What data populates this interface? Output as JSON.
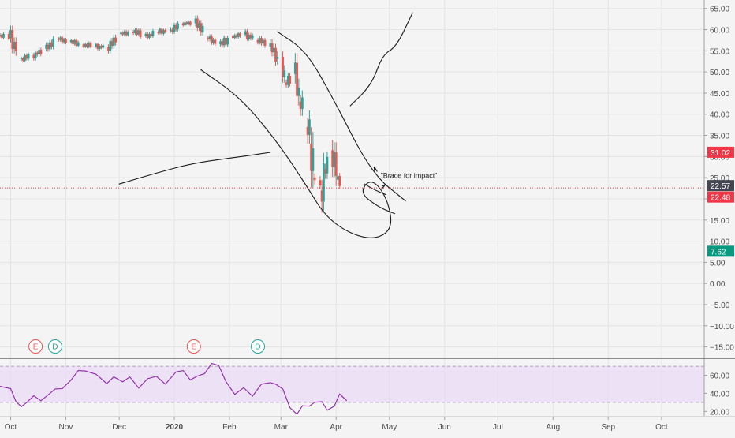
{
  "theme": {
    "background": "#f4f4f4",
    "grid": "#e3e3e3",
    "axis_text": "#4a4a4a",
    "up_color": "#26a69a",
    "down_color": "#ef5350",
    "drawing_color": "#1a1a1a",
    "rsi_line": "#8e24aa",
    "rsi_band_fill": "#e8d9f5",
    "current_price_line": "#e53935"
  },
  "chart_data": [
    {
      "type": "candlestick",
      "title": "",
      "x_axis": {
        "tick_labels": [
          "Oct",
          "Nov",
          "Dec",
          "2020",
          "Feb",
          "Mar",
          "Apr",
          "May",
          "Jun",
          "Jul",
          "Aug",
          "Sep",
          "Oct"
        ],
        "range": [
          "2019-09-25",
          "2020-10-25"
        ]
      },
      "y_axis": {
        "tick_labels": [
          "65.00",
          "60.00",
          "55.00",
          "50.00",
          "45.00",
          "40.00",
          "35.00",
          "30.00",
          "25.00",
          "20.00",
          "15.00",
          "10.00",
          "5.00",
          "0.00",
          "−5.00",
          "−10.00",
          "−15.00"
        ],
        "ylim": [
          -17.5,
          67.0
        ],
        "position": "right"
      },
      "grid": true,
      "close_series": {
        "name": "",
        "dates": [
          "2019-09-25",
          "2019-10-01",
          "2019-10-07",
          "2019-10-14",
          "2019-10-21",
          "2019-10-28",
          "2019-11-04",
          "2019-11-11",
          "2019-11-18",
          "2019-11-25",
          "2019-12-02",
          "2019-12-09",
          "2019-12-16",
          "2019-12-23",
          "2019-12-30",
          "2020-01-06",
          "2020-01-13",
          "2020-01-20",
          "2020-01-27",
          "2020-02-03",
          "2020-02-10",
          "2020-02-17",
          "2020-02-24",
          "2020-02-28",
          "2020-03-04",
          "2020-03-09",
          "2020-03-12",
          "2020-03-16",
          "2020-03-18",
          "2020-03-20",
          "2020-03-24",
          "2020-03-26",
          "2020-03-30",
          "2020-04-02",
          "2020-04-06"
        ],
        "close": [
          58.6,
          58.0,
          53.0,
          54.0,
          55.5,
          57.8,
          57.0,
          56.5,
          56.0,
          55.8,
          59.0,
          59.5,
          58.5,
          59.5,
          59.8,
          61.5,
          61.5,
          58.0,
          56.5,
          58.5,
          58.8,
          57.5,
          56.0,
          53.0,
          47.5,
          49.5,
          43.0,
          37.0,
          33.0,
          25.0,
          22.0,
          27.0,
          31.5,
          24.5,
          22.57
        ]
      },
      "price_markers": [
        {
          "label": "31.02",
          "value": 31.02,
          "color": "#f23645"
        },
        {
          "label": "22.57",
          "value": 22.57,
          "color": "#434651"
        },
        {
          "label": "22.48",
          "value": 22.48,
          "color": "#f23645"
        },
        {
          "label": "7.62",
          "value": 7.62,
          "color": "#089981"
        }
      ],
      "annotations": [
        {
          "text": "\"Brace for impact\"",
          "date": "2020-04-26",
          "value": 25.5
        }
      ],
      "event_markers": [
        {
          "label": "E",
          "date": "2019-10-15",
          "color": "#ef5350"
        },
        {
          "label": "D",
          "date": "2019-10-26",
          "color": "#26a69a"
        },
        {
          "label": "E",
          "date": "2020-01-12",
          "color": "#ef5350"
        },
        {
          "label": "D",
          "date": "2020-02-17",
          "color": "#26a69a"
        }
      ]
    },
    {
      "type": "line",
      "title": "",
      "y_axis": {
        "tick_labels": [
          "60.00",
          "40.00",
          "20.00"
        ],
        "ylim": [
          15,
          78
        ],
        "position": "right"
      },
      "bands": [
        30,
        70
      ],
      "series": [
        {
          "name": "",
          "dates": [
            "2019-09-25",
            "2019-10-01",
            "2019-10-04",
            "2019-10-07",
            "2019-10-10",
            "2019-10-14",
            "2019-10-18",
            "2019-10-22",
            "2019-10-26",
            "2019-10-30",
            "2019-11-04",
            "2019-11-08",
            "2019-11-12",
            "2019-11-18",
            "2019-11-24",
            "2019-11-28",
            "2019-12-03",
            "2019-12-07",
            "2019-12-12",
            "2019-12-17",
            "2019-12-22",
            "2019-12-27",
            "2020-01-02",
            "2020-01-06",
            "2020-01-10",
            "2020-01-14",
            "2020-01-18",
            "2020-01-22",
            "2020-01-26",
            "2020-01-30",
            "2020-02-04",
            "2020-02-09",
            "2020-02-14",
            "2020-02-19",
            "2020-02-24",
            "2020-02-27",
            "2020-03-02",
            "2020-03-06",
            "2020-03-10",
            "2020-03-13",
            "2020-03-17",
            "2020-03-20",
            "2020-03-24",
            "2020-03-27",
            "2020-03-31",
            "2020-04-03",
            "2020-04-07"
          ],
          "values": [
            49,
            44,
            32,
            24,
            31,
            36,
            33,
            37,
            46,
            44,
            56,
            64,
            66,
            60,
            52,
            57,
            54,
            57,
            47,
            55,
            60,
            49,
            65,
            64,
            56,
            58,
            63,
            72,
            72,
            52,
            40,
            45,
            38,
            49,
            53,
            49,
            46,
            23,
            18,
            25,
            27,
            29,
            32,
            20,
            27,
            38,
            33
          ]
        }
      ]
    }
  ],
  "drawings": [
    {
      "name": "curve-1",
      "points": [
        [
          "2020-01-16",
          50.5
        ],
        [
          "2020-02-07",
          44.0
        ],
        [
          "2020-02-27",
          34.0
        ],
        [
          "2020-03-14",
          24.0
        ],
        [
          "2020-03-28",
          14.5
        ],
        [
          "2020-04-19",
          10.0
        ],
        [
          "2020-05-03",
          12.5
        ],
        [
          "2020-04-30",
          20.0
        ],
        [
          "2020-04-21",
          25.0
        ],
        [
          "2020-04-14",
          21.5
        ],
        [
          "2020-04-25",
          18.0
        ],
        [
          "2020-05-04",
          16.5
        ]
      ]
    },
    {
      "name": "curve-2",
      "points": [
        [
          "2020-02-28",
          59.5
        ],
        [
          "2020-03-15",
          55.0
        ],
        [
          "2020-03-30",
          44.0
        ],
        [
          "2020-04-21",
          26.0
        ],
        [
          "2020-05-10",
          19.5
        ]
      ]
    },
    {
      "name": "curve-3",
      "points": [
        [
          "2020-04-09",
          42.0
        ],
        [
          "2020-04-21",
          47.0
        ],
        [
          "2020-04-27",
          54.0
        ],
        [
          "2020-05-05",
          56.0
        ],
        [
          "2020-05-14",
          64.0
        ]
      ]
    },
    {
      "name": "curve-4",
      "points": [
        [
          "2019-12-01",
          23.5
        ],
        [
          "2019-12-21",
          26.0
        ],
        [
          "2020-01-12",
          28.5
        ],
        [
          "2020-02-08",
          30.0
        ],
        [
          "2020-02-24",
          31.0
        ]
      ]
    },
    {
      "name": "scribble-1",
      "points": [
        [
          "2020-04-17",
          23.5
        ],
        [
          "2020-04-23",
          22.0
        ],
        [
          "2020-04-29",
          21.0
        ]
      ]
    },
    {
      "name": "scribble-2",
      "points": [
        [
          "2020-04-23",
          26.0
        ],
        [
          "2020-04-22",
          28.0
        ],
        [
          "2020-04-24",
          26.5
        ]
      ]
    },
    {
      "name": "scribble-3",
      "points": [
        [
          "2020-04-27",
          22.5
        ],
        [
          "2020-04-29",
          23.5
        ],
        [
          "2020-04-27",
          23.0
        ]
      ]
    }
  ]
}
